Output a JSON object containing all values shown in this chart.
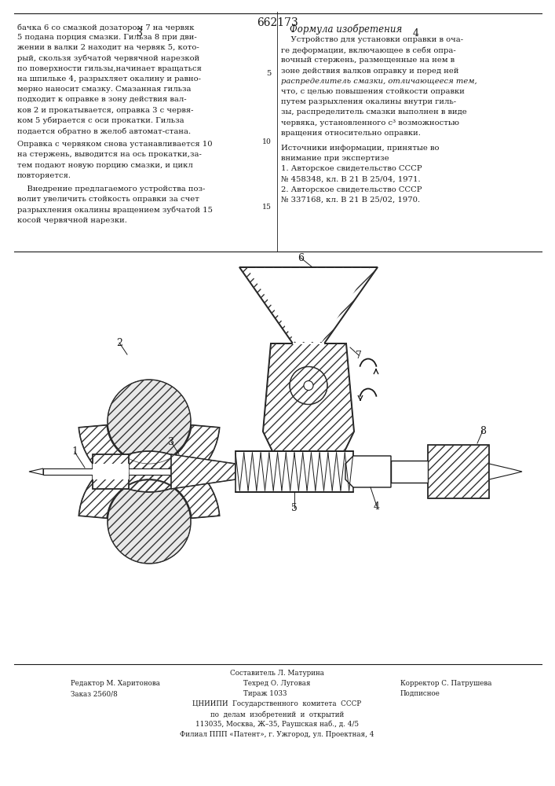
{
  "title": "662173",
  "page_numbers": [
    "3",
    "4"
  ],
  "bg_color": "#ffffff",
  "text_color": "#1a1a1a",
  "hatch_color": "#333333",
  "line_color": "#1a1a1a",
  "col1_lines": [
    "бачка 6 со смазкой дозатором 7 на червяк",
    "5 подана порция смазки. Гильза 8 при дви-",
    "жении в валки 2 находит на червяк 5, кото-",
    "рый, скользя зубчатой червячной нарезкой",
    "по поверхности гильзы,начинает вращаться",
    "на шпильке 4, разрыхляет окалину и равно-",
    "мерно наносит смазку. Смазанная гильза",
    "подходит к оправке в зону действия вал-",
    "ков 2 и прокатывается, оправка 3 с червя-",
    "ком 5 убирается с оси прокатки. Гильза",
    "подается обратно в желоб автомат-стана."
  ],
  "col1_lines2": [
    "Оправка с червяком снова устанавливается 10",
    "на стержень, выводится на ось прокатки,за-",
    "тем подают новую порцию смазки, и цикл",
    "повторяется."
  ],
  "col1_lines3": [
    "    Внедрение предлагаемого устройства поз-",
    "волит увеличить стойкость оправки за счет",
    "разрыхления окалины вращением зубчатой 15",
    "косой червячной нарезки."
  ],
  "col2_header": "Формула изобретения",
  "col2_lines": [
    "    Устройство для установки оправки в оча-",
    "ге деформации, включающее в себя опра-",
    "вочный стержень, размещенные на нем в",
    "зоне действия валков оправку и перед ней",
    "распределитель смазки, отличающееся тем,",
    "что, с целью повышения стойкости оправки",
    "путем разрыхления окалины внутри гиль-",
    "зы, распределитель смазки выполнен в виде",
    "червяка, установленного с³ возможностью",
    "вращения относительно оправки."
  ],
  "sources_header": "Источники информации, принятые во",
  "sources_sub": "внимание при экспертизе",
  "source1a": "1. Авторское свидетельство СССР",
  "source1b": "№ 458348, кл. В 21 В 25/04, 1971.",
  "source2a": "2. Авторское свидетельство СССР",
  "source2b": "№ 337168, кл. В 21 В 25/02, 1970.",
  "footer_composer": "Составитель Л. Матурина",
  "footer_editor": "Редактор М. Харитонова",
  "footer_tech": "Техред О. Луговая",
  "footer_corr": "Корректор С. Патрушева",
  "footer_order": "Заказ 2560/8",
  "footer_circ": "Тираж 1033",
  "footer_sign": "Подписное",
  "footer_org": "ЦНИИПИ  Государственного  комитета  СССР",
  "footer_org2": "по  делам  изобретений  и  открытий",
  "footer_addr": "113035, Москва, Ж–35, Раушская наб., д. 4/5",
  "footer_branch": "Филиал ППП «Патент», г. Ужгород, ул. Проектная, 4"
}
